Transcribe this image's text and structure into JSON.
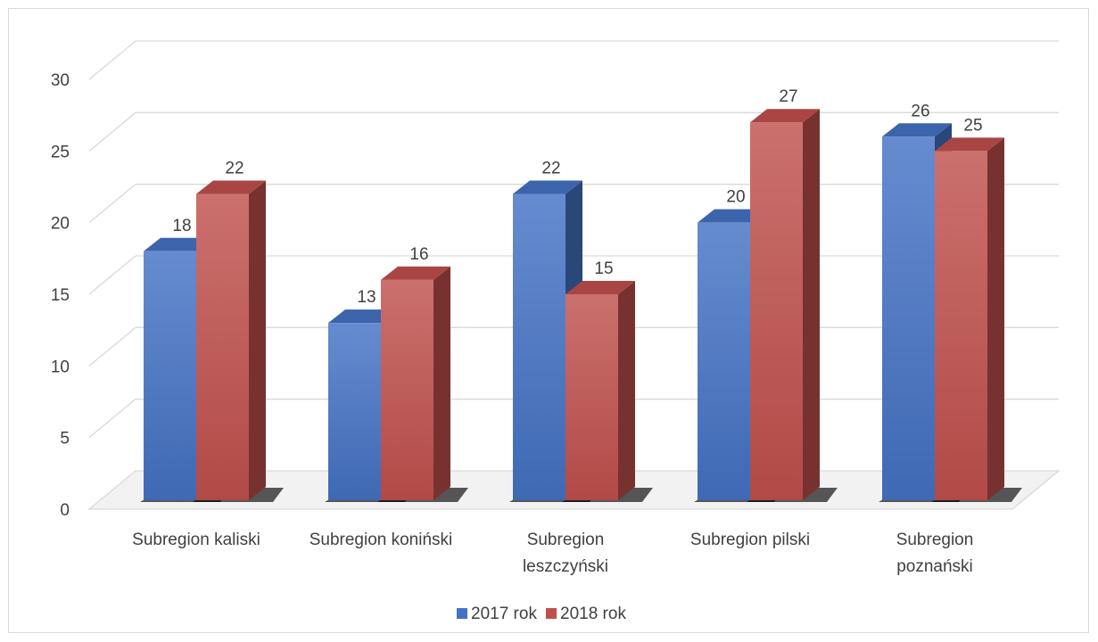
{
  "chart_data": {
    "type": "bar",
    "title": "",
    "xlabel": "",
    "ylabel": "",
    "categories": [
      [
        "Subregion kaliski"
      ],
      [
        "Subregion koniński"
      ],
      [
        "Subregion",
        "leszczyński"
      ],
      [
        "Subregion pilski"
      ],
      [
        "Subregion",
        "poznański"
      ]
    ],
    "series": [
      {
        "name": "2017 rok",
        "values": [
          18,
          13,
          22,
          20,
          26
        ],
        "color": "#4472c4"
      },
      {
        "name": "2018 rok",
        "values": [
          22,
          16,
          15,
          27,
          25
        ],
        "color": "#c0504d"
      }
    ],
    "ylim": [
      0,
      30
    ],
    "yticks": [
      0,
      5,
      10,
      15,
      20,
      25,
      30
    ],
    "grid": true,
    "legend_position": "bottom",
    "style_3d": true
  }
}
